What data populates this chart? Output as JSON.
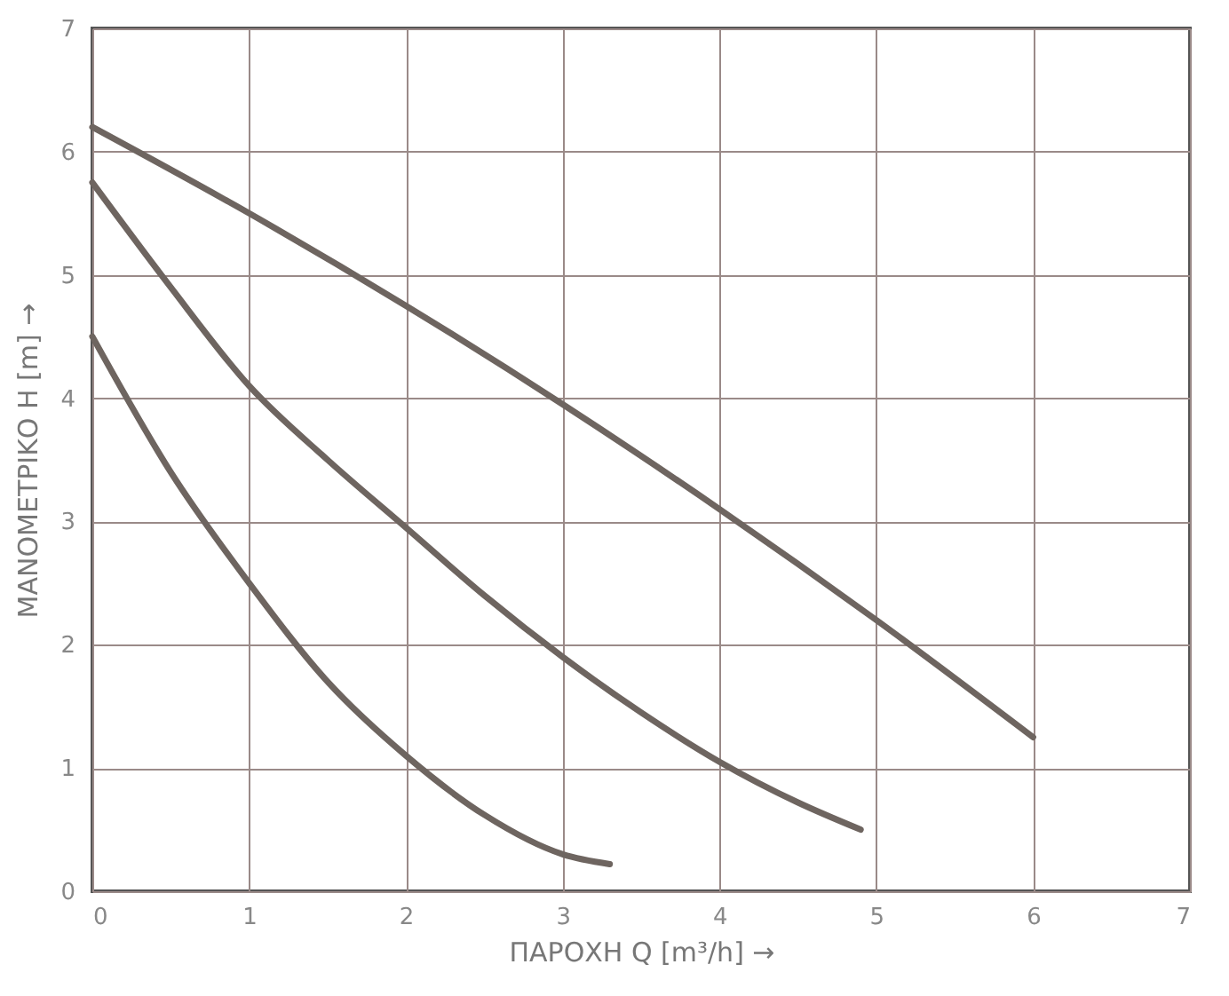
{
  "chart_data": {
    "type": "line",
    "xlabel": "ΠΑΡΟΧΗ Q  [m³/h]  →",
    "ylabel": "ΜΑΝΟΜΕΤΡΙΚΟ  Η [m]  →",
    "xlim": [
      0,
      7
    ],
    "ylim": [
      0,
      7
    ],
    "xticks": [
      0,
      1,
      2,
      3,
      4,
      5,
      6,
      7
    ],
    "yticks": [
      0,
      1,
      2,
      3,
      4,
      5,
      6,
      7
    ],
    "grid": true,
    "marker": "none",
    "line_style": "solid",
    "series": [
      {
        "color": "#6e6560",
        "x": [
          0,
          1,
          2,
          3,
          4,
          5,
          6
        ],
        "values": [
          6.2,
          5.5,
          4.75,
          3.95,
          3.1,
          2.2,
          1.25
        ]
      },
      {
        "color": "#6e6560",
        "x": [
          0,
          0.5,
          1,
          1.5,
          2,
          2.5,
          3,
          3.5,
          4,
          4.5,
          4.9
        ],
        "values": [
          5.75,
          4.9,
          4.1,
          3.5,
          2.95,
          2.4,
          1.9,
          1.45,
          1.05,
          0.72,
          0.5
        ]
      },
      {
        "color": "#6e6560",
        "x": [
          0,
          0.5,
          1,
          1.5,
          2,
          2.5,
          3,
          3.3
        ],
        "values": [
          4.5,
          3.4,
          2.5,
          1.7,
          1.1,
          0.62,
          0.3,
          0.22
        ]
      }
    ]
  }
}
